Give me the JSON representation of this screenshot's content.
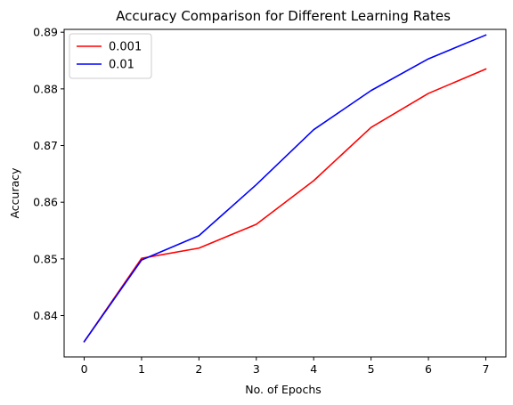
{
  "chart_data": {
    "type": "line",
    "title": "Accuracy  Comparison for Different Learning Rates",
    "xlabel": "No. of Epochs",
    "ylabel": "Accuracy",
    "x": [
      0,
      1,
      2,
      3,
      4,
      5,
      6,
      7
    ],
    "xlim": [
      -0.35,
      7.35
    ],
    "ylim": [
      0.8327,
      0.8905
    ],
    "xticks": [
      "0",
      "1",
      "2",
      "3",
      "4",
      "5",
      "6",
      "7"
    ],
    "xtick_values": [
      0,
      1,
      2,
      3,
      4,
      5,
      6,
      7
    ],
    "yticks": [
      "0.84",
      "0.85",
      "0.86",
      "0.87",
      "0.88",
      "0.89"
    ],
    "ytick_values": [
      0.84,
      0.85,
      0.86,
      0.87,
      0.88,
      0.89
    ],
    "grid": false,
    "legend_position": "top-left",
    "series": [
      {
        "name": "0.001",
        "color": "#ff0000",
        "values": [
          0.8354,
          0.8501,
          0.8519,
          0.8561,
          0.8638,
          0.8732,
          0.8792,
          0.8835
        ]
      },
      {
        "name": "0.01",
        "color": "#0000ff",
        "values": [
          0.8354,
          0.8498,
          0.8541,
          0.8631,
          0.8728,
          0.8797,
          0.8853,
          0.8895
        ]
      }
    ]
  }
}
